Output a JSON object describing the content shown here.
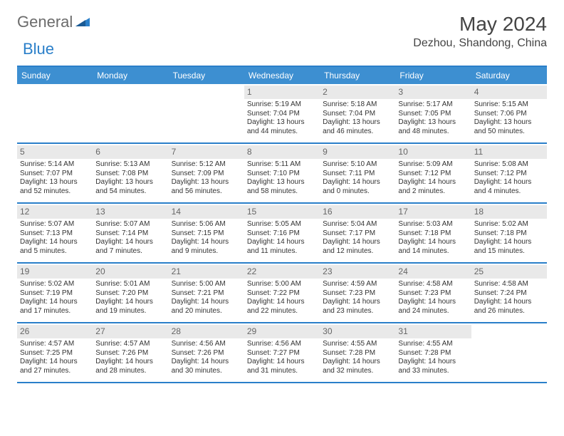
{
  "logo": {
    "text1": "General",
    "text2": "Blue"
  },
  "title": "May 2024",
  "location": "Dezhou, Shandong, China",
  "colors": {
    "header_bg": "#3d8fd1",
    "divider": "#2a7fc9",
    "daybar": "#e9e9e9",
    "text": "#333333",
    "logo_gray": "#6b6b6b",
    "logo_blue": "#2a7fc9"
  },
  "weekdays": [
    "Sunday",
    "Monday",
    "Tuesday",
    "Wednesday",
    "Thursday",
    "Friday",
    "Saturday"
  ],
  "grid": {
    "leading_blanks": 3,
    "days": [
      {
        "n": 1,
        "sunrise": "5:19 AM",
        "sunset": "7:04 PM",
        "daylight": "13 hours and 44 minutes."
      },
      {
        "n": 2,
        "sunrise": "5:18 AM",
        "sunset": "7:04 PM",
        "daylight": "13 hours and 46 minutes."
      },
      {
        "n": 3,
        "sunrise": "5:17 AM",
        "sunset": "7:05 PM",
        "daylight": "13 hours and 48 minutes."
      },
      {
        "n": 4,
        "sunrise": "5:15 AM",
        "sunset": "7:06 PM",
        "daylight": "13 hours and 50 minutes."
      },
      {
        "n": 5,
        "sunrise": "5:14 AM",
        "sunset": "7:07 PM",
        "daylight": "13 hours and 52 minutes."
      },
      {
        "n": 6,
        "sunrise": "5:13 AM",
        "sunset": "7:08 PM",
        "daylight": "13 hours and 54 minutes."
      },
      {
        "n": 7,
        "sunrise": "5:12 AM",
        "sunset": "7:09 PM",
        "daylight": "13 hours and 56 minutes."
      },
      {
        "n": 8,
        "sunrise": "5:11 AM",
        "sunset": "7:10 PM",
        "daylight": "13 hours and 58 minutes."
      },
      {
        "n": 9,
        "sunrise": "5:10 AM",
        "sunset": "7:11 PM",
        "daylight": "14 hours and 0 minutes."
      },
      {
        "n": 10,
        "sunrise": "5:09 AM",
        "sunset": "7:12 PM",
        "daylight": "14 hours and 2 minutes."
      },
      {
        "n": 11,
        "sunrise": "5:08 AM",
        "sunset": "7:12 PM",
        "daylight": "14 hours and 4 minutes."
      },
      {
        "n": 12,
        "sunrise": "5:07 AM",
        "sunset": "7:13 PM",
        "daylight": "14 hours and 5 minutes."
      },
      {
        "n": 13,
        "sunrise": "5:07 AM",
        "sunset": "7:14 PM",
        "daylight": "14 hours and 7 minutes."
      },
      {
        "n": 14,
        "sunrise": "5:06 AM",
        "sunset": "7:15 PM",
        "daylight": "14 hours and 9 minutes."
      },
      {
        "n": 15,
        "sunrise": "5:05 AM",
        "sunset": "7:16 PM",
        "daylight": "14 hours and 11 minutes."
      },
      {
        "n": 16,
        "sunrise": "5:04 AM",
        "sunset": "7:17 PM",
        "daylight": "14 hours and 12 minutes."
      },
      {
        "n": 17,
        "sunrise": "5:03 AM",
        "sunset": "7:18 PM",
        "daylight": "14 hours and 14 minutes."
      },
      {
        "n": 18,
        "sunrise": "5:02 AM",
        "sunset": "7:18 PM",
        "daylight": "14 hours and 15 minutes."
      },
      {
        "n": 19,
        "sunrise": "5:02 AM",
        "sunset": "7:19 PM",
        "daylight": "14 hours and 17 minutes."
      },
      {
        "n": 20,
        "sunrise": "5:01 AM",
        "sunset": "7:20 PM",
        "daylight": "14 hours and 19 minutes."
      },
      {
        "n": 21,
        "sunrise": "5:00 AM",
        "sunset": "7:21 PM",
        "daylight": "14 hours and 20 minutes."
      },
      {
        "n": 22,
        "sunrise": "5:00 AM",
        "sunset": "7:22 PM",
        "daylight": "14 hours and 22 minutes."
      },
      {
        "n": 23,
        "sunrise": "4:59 AM",
        "sunset": "7:23 PM",
        "daylight": "14 hours and 23 minutes."
      },
      {
        "n": 24,
        "sunrise": "4:58 AM",
        "sunset": "7:23 PM",
        "daylight": "14 hours and 24 minutes."
      },
      {
        "n": 25,
        "sunrise": "4:58 AM",
        "sunset": "7:24 PM",
        "daylight": "14 hours and 26 minutes."
      },
      {
        "n": 26,
        "sunrise": "4:57 AM",
        "sunset": "7:25 PM",
        "daylight": "14 hours and 27 minutes."
      },
      {
        "n": 27,
        "sunrise": "4:57 AM",
        "sunset": "7:26 PM",
        "daylight": "14 hours and 28 minutes."
      },
      {
        "n": 28,
        "sunrise": "4:56 AM",
        "sunset": "7:26 PM",
        "daylight": "14 hours and 30 minutes."
      },
      {
        "n": 29,
        "sunrise": "4:56 AM",
        "sunset": "7:27 PM",
        "daylight": "14 hours and 31 minutes."
      },
      {
        "n": 30,
        "sunrise": "4:55 AM",
        "sunset": "7:28 PM",
        "daylight": "14 hours and 32 minutes."
      },
      {
        "n": 31,
        "sunrise": "4:55 AM",
        "sunset": "7:28 PM",
        "daylight": "14 hours and 33 minutes."
      }
    ],
    "trailing_blanks": 1
  },
  "labels": {
    "sunrise": "Sunrise:",
    "sunset": "Sunset:",
    "daylight": "Daylight:"
  }
}
